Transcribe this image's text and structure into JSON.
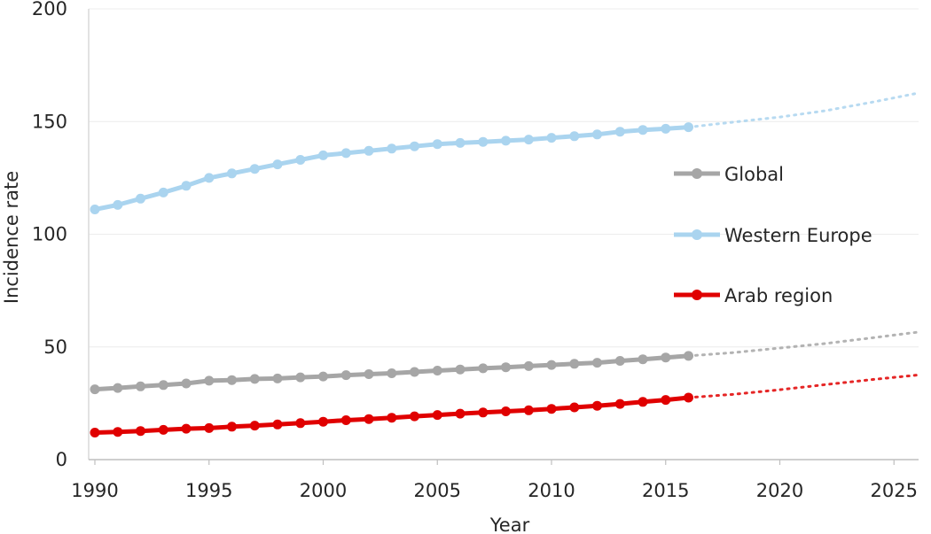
{
  "chart_data": {
    "type": "line",
    "xlabel": "Year",
    "ylabel": "Incidence rate",
    "xlim": [
      1990,
      2026
    ],
    "ylim": [
      0,
      200
    ],
    "x_ticks": [
      1990,
      1995,
      2000,
      2005,
      2010,
      2015,
      2020,
      2025
    ],
    "y_ticks": [
      0,
      50,
      100,
      150,
      200
    ],
    "grid": "horizontal",
    "legend_position": "right",
    "series": [
      {
        "name": "Global",
        "color": "#a6a6a6",
        "x": [
          1990,
          1991,
          1992,
          1993,
          1994,
          1995,
          1996,
          1997,
          1998,
          1999,
          2000,
          2001,
          2002,
          2003,
          2004,
          2005,
          2006,
          2007,
          2008,
          2009,
          2010,
          2011,
          2012,
          2013,
          2014,
          2015,
          2016
        ],
        "values": [
          31.2,
          31.8,
          32.5,
          33.1,
          33.8,
          35.0,
          35.3,
          35.8,
          36.0,
          36.5,
          36.9,
          37.5,
          37.9,
          38.3,
          38.9,
          39.5,
          40.0,
          40.5,
          41.0,
          41.5,
          42.0,
          42.5,
          43.0,
          43.8,
          44.5,
          45.3,
          46.0
        ],
        "projection": {
          "x": [
            2016,
            2018,
            2020,
            2022,
            2024,
            2026
          ],
          "values": [
            46.0,
            47.5,
            49.5,
            51.5,
            54.0,
            56.5
          ]
        }
      },
      {
        "name": "Western Europe",
        "color": "#aad4ef",
        "x": [
          1990,
          1991,
          1992,
          1993,
          1994,
          1995,
          1996,
          1997,
          1998,
          1999,
          2000,
          2001,
          2002,
          2003,
          2004,
          2005,
          2006,
          2007,
          2008,
          2009,
          2010,
          2011,
          2012,
          2013,
          2014,
          2015,
          2016
        ],
        "values": [
          111.0,
          113.0,
          115.8,
          118.5,
          121.5,
          125.0,
          127.0,
          129.0,
          131.0,
          133.0,
          135.0,
          136.0,
          137.0,
          138.0,
          139.0,
          140.0,
          140.5,
          141.0,
          141.5,
          142.0,
          142.8,
          143.5,
          144.3,
          145.5,
          146.3,
          146.8,
          147.5
        ],
        "projection": {
          "x": [
            2016,
            2018,
            2020,
            2022,
            2024,
            2026
          ],
          "values": [
            147.5,
            149.8,
            152.0,
            154.8,
            158.5,
            162.5
          ]
        }
      },
      {
        "name": "Arab region",
        "color": "#e00000",
        "x": [
          1990,
          1991,
          1992,
          1993,
          1994,
          1995,
          1996,
          1997,
          1998,
          1999,
          2000,
          2001,
          2002,
          2003,
          2004,
          2005,
          2006,
          2007,
          2008,
          2009,
          2010,
          2011,
          2012,
          2013,
          2014,
          2015,
          2016
        ],
        "values": [
          12.0,
          12.3,
          12.7,
          13.2,
          13.7,
          14.0,
          14.6,
          15.1,
          15.6,
          16.2,
          16.8,
          17.5,
          18.0,
          18.6,
          19.2,
          19.8,
          20.4,
          20.9,
          21.4,
          21.9,
          22.5,
          23.2,
          23.9,
          24.7,
          25.6,
          26.5,
          27.5
        ],
        "projection": {
          "x": [
            2016,
            2018,
            2020,
            2022,
            2024,
            2026
          ],
          "values": [
            27.5,
            29.0,
            31.0,
            33.3,
            35.5,
            37.5
          ]
        }
      }
    ]
  }
}
